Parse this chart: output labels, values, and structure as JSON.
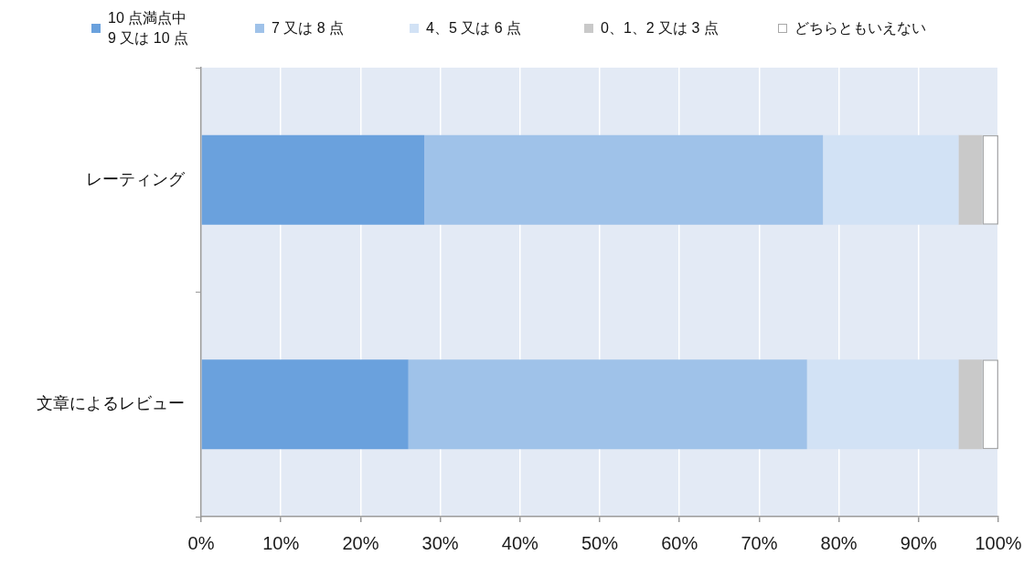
{
  "chart_data": {
    "type": "bar",
    "orientation": "horizontal",
    "stacked": true,
    "categories": [
      "レーティング",
      "文章によるレビュー"
    ],
    "series": [
      {
        "name": "10 点満点中\n9 又は 10 点",
        "color": "#6aa1dd",
        "values": [
          28,
          26
        ]
      },
      {
        "name": "7 又は 8 点",
        "color": "#9fc2e9",
        "values": [
          50,
          50
        ]
      },
      {
        "name": "4、5 又は 6 点",
        "color": "#d2e2f5",
        "values": [
          17,
          19
        ]
      },
      {
        "name": "0、1、2 又は 3 点",
        "color": "#c9c9c9",
        "values": [
          3,
          3
        ]
      },
      {
        "name": "どちらともいえない",
        "color": "#ffffff",
        "values": [
          2,
          2
        ]
      }
    ],
    "xlim": [
      0,
      100
    ],
    "xticks": [
      {
        "value": 0,
        "label": "0%"
      },
      {
        "value": 10,
        "label": "10%"
      },
      {
        "value": 20,
        "label": "20%"
      },
      {
        "value": 30,
        "label": "30%"
      },
      {
        "value": 40,
        "label": "40%"
      },
      {
        "value": 50,
        "label": "50%"
      },
      {
        "value": 60,
        "label": "60%"
      },
      {
        "value": 70,
        "label": "70%"
      },
      {
        "value": 80,
        "label": "80%"
      },
      {
        "value": 90,
        "label": "90%"
      },
      {
        "value": 100,
        "label": "100%"
      }
    ],
    "grid": "x",
    "legend": "top"
  }
}
